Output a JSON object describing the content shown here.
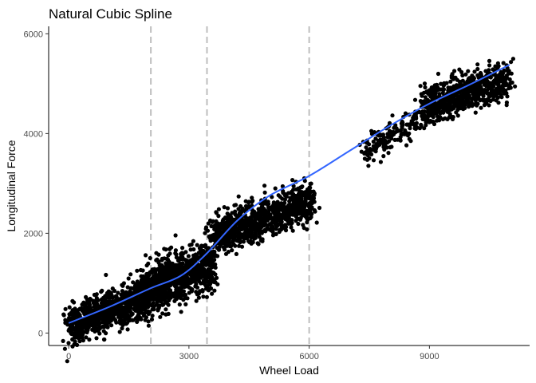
{
  "chart_data": {
    "type": "scatter",
    "title": "Natural Cubic Spline",
    "xlabel": "Wheel Load",
    "ylabel": "Longitudinal Force",
    "xlim": [
      -500,
      11500
    ],
    "ylim": [
      -250,
      6150
    ],
    "x_ticks": [
      0,
      3000,
      6000,
      9000
    ],
    "x_tick_labels": [
      "0",
      "3000",
      "6000",
      "9000"
    ],
    "y_ticks": [
      0,
      2000,
      4000,
      6000
    ],
    "y_tick_labels": [
      "0",
      "2000",
      "4000",
      "6000"
    ],
    "knots": [
      2050,
      3450,
      6000
    ],
    "grid": false,
    "point_color": "#000000",
    "spline_color": "#3366FF",
    "knot_line_color": "#BEBEBE",
    "clusters": [
      {
        "x_range": [
          0,
          2000
        ],
        "y_center_at_start": 150,
        "y_center_at_end": 750,
        "y_spread": 350,
        "n": 900
      },
      {
        "x_range": [
          1900,
          3600
        ],
        "y_center_at_start": 850,
        "y_center_at_end": 1400,
        "y_spread": 450,
        "n": 900
      },
      {
        "x_range": [
          3600,
          6100
        ],
        "y_center_at_start": 1950,
        "y_center_at_end": 2650,
        "y_spread": 350,
        "n": 900
      },
      {
        "x_range": [
          7250,
          8800
        ],
        "y_center_at_start": 3600,
        "y_center_at_end": 4300,
        "y_spread": 250,
        "n": 160
      },
      {
        "x_range": [
          8800,
          11000
        ],
        "y_center_at_start": 4500,
        "y_center_at_end": 5100,
        "y_spread": 350,
        "n": 700
      }
    ],
    "spline": {
      "x": [
        0,
        1000,
        2050,
        2800,
        3450,
        4200,
        5000,
        6000,
        7000,
        8000,
        9000,
        10000,
        11000
      ],
      "y": [
        200,
        520,
        900,
        1150,
        1600,
        2250,
        2750,
        3150,
        3650,
        4150,
        4600,
        4980,
        5380
      ]
    }
  }
}
